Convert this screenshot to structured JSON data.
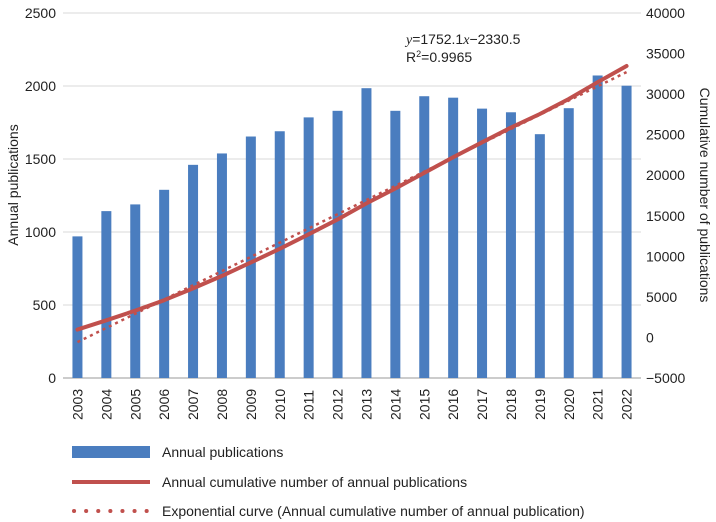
{
  "chart_data": {
    "type": "bar+line",
    "categories": [
      "2003",
      "2004",
      "2005",
      "2006",
      "2007",
      "2008",
      "2009",
      "2010",
      "2011",
      "2012",
      "2013",
      "2014",
      "2015",
      "2016",
      "2017",
      "2018",
      "2019",
      "2020",
      "2021",
      "2022"
    ],
    "series": [
      {
        "name": "Annual publications",
        "type": "bar",
        "axis": "left",
        "color": "#4a7dbf",
        "values": [
          970,
          1143,
          1189,
          1289,
          1460,
          1538,
          1654,
          1690,
          1785,
          1830,
          1985,
          1830,
          1930,
          1920,
          1845,
          1820,
          1670,
          1848,
          2072,
          2002
        ]
      },
      {
        "name": "Annual cumulative number of annual publications",
        "type": "line",
        "axis": "right",
        "color": "#c0504d",
        "values": [
          970,
          2113,
          3302,
          4591,
          6051,
          7589,
          9243,
          10933,
          12718,
          14548,
          16533,
          18363,
          20293,
          22213,
          24058,
          25878,
          27548,
          29396,
          31468,
          33470
        ]
      },
      {
        "name": "Exponential curve (Annual cumulative number of annual publication)",
        "type": "trendline",
        "axis": "right",
        "color": "#c0504d",
        "values": [
          -578,
          1174,
          2926,
          4678,
          6430,
          8182,
          9934,
          11687,
          13439,
          15191,
          16943,
          18695,
          20447,
          22199,
          23951,
          25703,
          27455,
          29208,
          30960,
          32712
        ]
      }
    ],
    "y_left": {
      "label": "Annual publications",
      "ylim": [
        0,
        2500
      ],
      "ticks": [
        "0",
        "500",
        "1000",
        "1500",
        "2000",
        "2500"
      ]
    },
    "y_right": {
      "label": "Cumulative number of publications",
      "ylim": [
        -5000,
        40000
      ],
      "ticks": [
        "−5000",
        "0",
        "5000",
        "10000",
        "15000",
        "20000",
        "25000",
        "30000",
        "35000",
        "40000"
      ]
    },
    "equation": {
      "y_symbol": "y",
      "eq_mid": "=1752.1",
      "x_symbol": "x",
      "eq_end": "−2330.5",
      "r_label": "R",
      "r_exp": "2",
      "r_value": "=0.9965"
    },
    "legend": {
      "position": "bottom",
      "items": [
        "Annual publications",
        "Annual cumulative number of annual publications",
        "Exponential curve (Annual cumulative number of annual publication)"
      ]
    },
    "grid": "horizontal"
  }
}
